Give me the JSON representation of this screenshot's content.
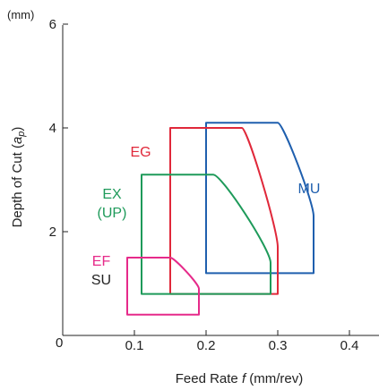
{
  "chart_data": {
    "type": "area",
    "title": "",
    "xlabel": "Feed Rate f (mm/rev)",
    "xlabel_parts": [
      "Feed Rate ",
      "f",
      " (mm/rev)"
    ],
    "ylabel": "Depth of Cut (ap)",
    "ylabel_parts": [
      "Depth of Cut (",
      "a",
      "p",
      ")"
    ],
    "y_unit": "(mm)",
    "origin_label": "0",
    "xlim": [
      0,
      0.45
    ],
    "ylim": [
      0,
      6.2
    ],
    "x_ticks": [
      0.1,
      0.2,
      0.3,
      0.4
    ],
    "x_tick_labels": [
      "0.1",
      "0.2",
      "0.3",
      "0.4"
    ],
    "y_ticks": [
      2,
      4,
      6
    ],
    "y_tick_labels": [
      "2",
      "4",
      "6"
    ],
    "grid": false,
    "series": [
      {
        "name": "MU",
        "color": "#1f5fae",
        "region": {
          "feed_range": [
            0.2,
            0.35
          ],
          "depth_range": [
            1.2,
            4.1
          ],
          "upper_right_curve": {
            "from_feed": 0.3,
            "to_depth": 2.3
          }
        }
      },
      {
        "name": "EG",
        "color": "#e0283a",
        "region": {
          "feed_range": [
            0.15,
            0.3
          ],
          "depth_range": [
            0.8,
            4.0
          ],
          "upper_right_curve": {
            "from_feed": 0.25,
            "to_depth": 1.7
          }
        }
      },
      {
        "name": "EX (UP)",
        "name_lines": [
          "EX",
          "(UP)"
        ],
        "color": "#1e9a5a",
        "region": {
          "feed_range": [
            0.11,
            0.29
          ],
          "depth_range": [
            0.8,
            3.1
          ],
          "upper_right_curve": {
            "from_feed": 0.21,
            "to_depth": 1.4
          }
        }
      },
      {
        "name": "EF",
        "color": "#e62a8a",
        "region": {
          "feed_range": [
            0.09,
            0.19
          ],
          "depth_range": [
            0.4,
            1.5
          ],
          "upper_right_curve": {
            "from_feed": 0.15,
            "to_depth": 0.9
          }
        }
      },
      {
        "name": "SU",
        "color": "#222222",
        "label_only": true
      }
    ]
  }
}
